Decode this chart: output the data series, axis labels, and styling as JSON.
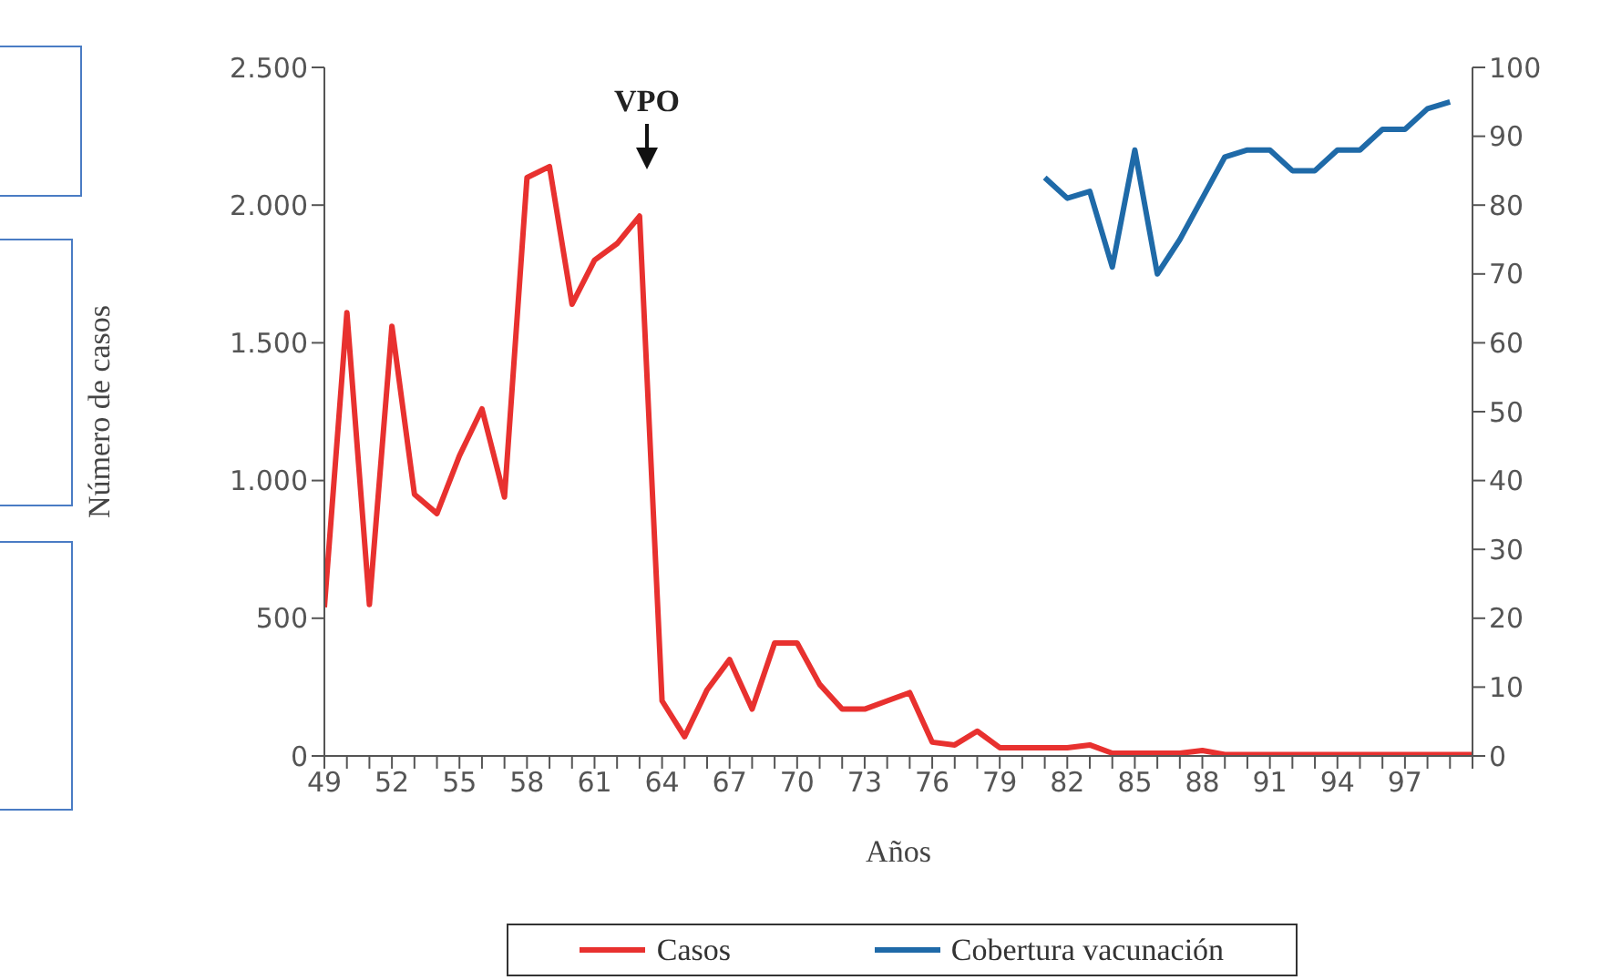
{
  "chart_data": {
    "type": "line",
    "xlabel": "Años",
    "ylabel": "Número de casos",
    "annotations": [
      "VPO"
    ],
    "x": [
      49,
      50,
      51,
      52,
      53,
      54,
      55,
      56,
      57,
      58,
      59,
      60,
      61,
      62,
      63,
      64,
      65,
      66,
      67,
      68,
      69,
      70,
      71,
      72,
      73,
      74,
      75,
      76,
      77,
      78,
      79,
      80,
      81,
      82,
      83,
      84,
      85,
      86,
      87,
      88,
      89,
      90,
      91,
      92,
      93,
      94,
      95,
      96,
      97,
      98,
      99,
      100
    ],
    "series": [
      {
        "name": "Casos",
        "color": "#e8312f",
        "values": [
          540,
          1610,
          550,
          1560,
          950,
          880,
          1090,
          1260,
          940,
          2100,
          2140,
          1640,
          1800,
          1860,
          1960,
          200,
          70,
          240,
          350,
          170,
          410,
          410,
          260,
          170,
          170,
          200,
          230,
          50,
          40,
          90,
          30,
          30,
          30,
          30,
          40,
          10,
          10,
          10,
          10,
          20,
          5,
          5,
          5,
          5,
          5,
          5,
          5,
          5,
          5,
          5,
          5,
          5
        ]
      },
      {
        "name": "Cobertura vacunación",
        "color": "#1f6aa8",
        "axis": "y2",
        "x": [
          81,
          82,
          83,
          84,
          85,
          86,
          87,
          88,
          89,
          90,
          91,
          92,
          93,
          94,
          95,
          96,
          97,
          98,
          99
        ],
        "values": [
          84,
          81,
          82,
          71,
          88,
          70,
          75,
          81,
          87,
          88,
          88,
          85,
          85,
          88,
          88,
          91,
          91,
          94,
          95
        ]
      }
    ],
    "xlim": [
      49,
      100
    ],
    "xticks": [
      49,
      {
        "value": 50,
        "label": null
      },
      {
        "value": 51,
        "label": null
      },
      52,
      {
        "value": 53,
        "label": null
      },
      {
        "value": 54,
        "label": null
      },
      55,
      {
        "value": 56,
        "label": null
      },
      {
        "value": 57,
        "label": null
      },
      58,
      {
        "value": 59,
        "label": null
      },
      {
        "value": 60,
        "label": null
      },
      61,
      {
        "value": 62,
        "label": null
      },
      {
        "value": 63,
        "label": null
      },
      64,
      {
        "value": 65,
        "label": null
      },
      {
        "value": 66,
        "label": null
      },
      67,
      {
        "value": 68,
        "label": null
      },
      {
        "value": 69,
        "label": null
      },
      70,
      {
        "value": 71,
        "label": null
      },
      {
        "value": 72,
        "label": null
      },
      73,
      {
        "value": 74,
        "label": null
      },
      {
        "value": 75,
        "label": null
      },
      76,
      {
        "value": 77,
        "label": null
      },
      {
        "value": 78,
        "label": null
      },
      79,
      {
        "value": 80,
        "label": null
      },
      {
        "value": 81,
        "label": null
      },
      82,
      {
        "value": 83,
        "label": null
      },
      {
        "value": 84,
        "label": null
      },
      85,
      {
        "value": 86,
        "label": null
      },
      {
        "value": 87,
        "label": null
      },
      88,
      {
        "value": 89,
        "label": null
      },
      {
        "value": 90,
        "label": null
      },
      91,
      {
        "value": 92,
        "label": null
      },
      {
        "value": 93,
        "label": null
      },
      94,
      {
        "value": 95,
        "label": null
      },
      {
        "value": 96,
        "label": null
      },
      97,
      {
        "value": 98,
        "label": null
      },
      {
        "value": 99,
        "label": null
      },
      {
        "value": 100,
        "label": null
      }
    ],
    "ylim": [
      0,
      2500
    ],
    "yticks": [
      0,
      500,
      {
        "value": 1000,
        "label": "1.000"
      },
      {
        "value": 1500,
        "label": "1.500"
      },
      {
        "value": 2000,
        "label": "2.000"
      },
      {
        "value": 2500,
        "label": "2.500"
      }
    ],
    "y2lim": [
      0,
      100
    ],
    "y2ticks": [
      0,
      10,
      20,
      30,
      40,
      50,
      60,
      70,
      80,
      90,
      100
    ],
    "legend": "bottom",
    "marker": "none",
    "line_style": "solid",
    "grid": false
  }
}
